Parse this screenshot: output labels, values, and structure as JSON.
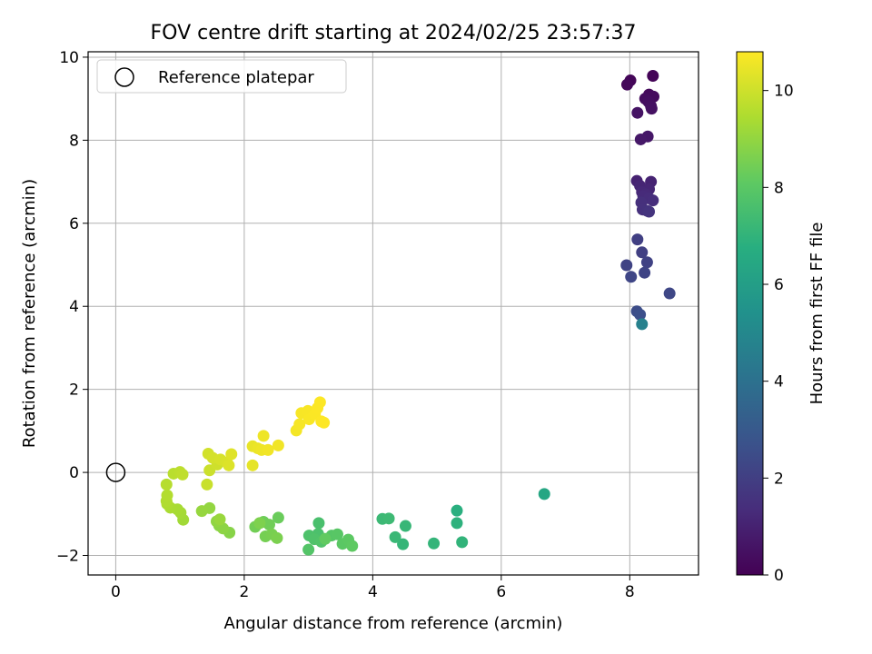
{
  "chart_data": {
    "type": "scatter",
    "title": "FOV centre drift starting at 2024/02/25 23:57:37",
    "xlabel": "Angular distance from reference (arcmin)",
    "ylabel": "Rotation from reference (arcmin)",
    "xlim": [
      -0.43,
      9.07
    ],
    "ylim": [
      -2.47,
      10.13
    ],
    "xticks": [
      0,
      2,
      4,
      6,
      8
    ],
    "yticks": [
      -2,
      0,
      2,
      4,
      6,
      8,
      10
    ],
    "grid": true,
    "legend": {
      "location": "top-left",
      "entries": [
        "Reference platepar"
      ]
    },
    "reference_point": {
      "x": 0,
      "y": 0
    },
    "colorbar": {
      "label": "Hours from first FF file",
      "colormap": "viridis",
      "range": [
        0,
        10.8
      ],
      "ticks": [
        0,
        2,
        4,
        6,
        8,
        10
      ]
    },
    "points": [
      [
        8.36,
        9.55,
        0.1
      ],
      [
        8.01,
        9.44,
        0.15
      ],
      [
        7.96,
        9.34,
        0.2
      ],
      [
        8.3,
        9.1,
        0.25
      ],
      [
        8.37,
        9.05,
        0.3
      ],
      [
        8.24,
        9.0,
        0.35
      ],
      [
        8.29,
        8.93,
        0.4
      ],
      [
        8.33,
        8.82,
        0.45
      ],
      [
        8.34,
        8.76,
        0.5
      ],
      [
        8.12,
        8.66,
        0.55
      ],
      [
        8.28,
        8.09,
        0.65
      ],
      [
        8.17,
        8.02,
        0.7
      ],
      [
        8.11,
        7.02,
        1.0
      ],
      [
        8.33,
        7.0,
        1.05
      ],
      [
        8.16,
        6.9,
        1.1
      ],
      [
        8.3,
        6.82,
        1.15
      ],
      [
        8.19,
        6.75,
        1.2
      ],
      [
        8.25,
        6.7,
        1.25
      ],
      [
        8.21,
        6.65,
        1.3
      ],
      [
        8.3,
        6.6,
        1.35
      ],
      [
        8.36,
        6.55,
        1.4
      ],
      [
        8.18,
        6.5,
        1.45
      ],
      [
        8.2,
        6.33,
        1.5
      ],
      [
        8.27,
        6.3,
        1.55
      ],
      [
        8.3,
        6.28,
        1.6
      ],
      [
        8.12,
        5.61,
        2.0
      ],
      [
        8.19,
        5.3,
        2.05
      ],
      [
        8.27,
        5.06,
        2.1
      ],
      [
        7.95,
        4.99,
        2.15
      ],
      [
        8.23,
        4.81,
        2.2
      ],
      [
        8.02,
        4.71,
        2.25
      ],
      [
        8.62,
        4.31,
        2.3
      ],
      [
        8.11,
        3.88,
        2.5
      ],
      [
        8.16,
        3.8,
        2.6
      ],
      [
        8.19,
        3.57,
        4.7
      ],
      [
        6.67,
        -0.52,
        6.4
      ],
      [
        5.31,
        -0.92,
        6.8
      ],
      [
        5.31,
        -1.22,
        6.9
      ],
      [
        5.39,
        -1.68,
        7.0
      ],
      [
        4.95,
        -1.71,
        7.05
      ],
      [
        4.47,
        -1.73,
        7.1
      ],
      [
        4.51,
        -1.29,
        7.15
      ],
      [
        4.35,
        -1.56,
        7.2
      ],
      [
        4.15,
        -1.12,
        7.25
      ],
      [
        4.25,
        -1.11,
        7.3
      ],
      [
        3.16,
        -1.22,
        7.6
      ],
      [
        3.15,
        -1.48,
        7.65
      ],
      [
        3.01,
        -1.52,
        7.7
      ],
      [
        3.09,
        -1.61,
        7.75
      ],
      [
        3.2,
        -1.67,
        7.8
      ],
      [
        3.0,
        -1.86,
        7.85
      ],
      [
        3.36,
        -1.52,
        7.9
      ],
      [
        3.45,
        -1.49,
        7.95
      ],
      [
        3.53,
        -1.72,
        8.0
      ],
      [
        3.62,
        -1.62,
        8.05
      ],
      [
        3.68,
        -1.77,
        8.1
      ],
      [
        3.26,
        -1.6,
        8.15
      ],
      [
        2.53,
        -1.09,
        8.3
      ],
      [
        2.3,
        -1.19,
        8.35
      ],
      [
        2.39,
        -1.26,
        8.4
      ],
      [
        2.17,
        -1.31,
        8.45
      ],
      [
        2.33,
        -1.54,
        8.5
      ],
      [
        2.43,
        -1.49,
        8.55
      ],
      [
        2.51,
        -1.58,
        8.6
      ],
      [
        2.24,
        -1.22,
        8.65
      ],
      [
        1.77,
        -1.45,
        8.8
      ],
      [
        1.61,
        -1.28,
        8.85
      ],
      [
        1.67,
        -1.35,
        8.9
      ],
      [
        1.57,
        -1.18,
        8.95
      ],
      [
        1.46,
        -0.86,
        9.0
      ],
      [
        1.34,
        -0.93,
        9.05
      ],
      [
        1.62,
        -1.13,
        9.1
      ],
      [
        1.05,
        -1.14,
        9.25
      ],
      [
        1.01,
        -0.97,
        9.3
      ],
      [
        0.96,
        -0.89,
        9.35
      ],
      [
        0.85,
        -0.85,
        9.4
      ],
      [
        0.8,
        -0.76,
        9.45
      ],
      [
        0.79,
        -0.69,
        9.5
      ],
      [
        0.8,
        -0.55,
        9.55
      ],
      [
        0.79,
        -0.29,
        9.6
      ],
      [
        0.9,
        -0.03,
        9.65
      ],
      [
        1.0,
        0.01,
        9.7
      ],
      [
        1.04,
        -0.05,
        9.75
      ],
      [
        1.42,
        -0.29,
        9.9
      ],
      [
        1.46,
        0.05,
        9.95
      ],
      [
        1.58,
        0.19,
        10.0
      ],
      [
        1.44,
        0.45,
        10.05
      ],
      [
        1.51,
        0.35,
        10.1
      ],
      [
        1.63,
        0.31,
        10.15
      ],
      [
        1.73,
        0.24,
        10.2
      ],
      [
        1.76,
        0.17,
        10.25
      ],
      [
        1.8,
        0.44,
        10.3
      ],
      [
        2.13,
        0.17,
        10.4
      ],
      [
        2.13,
        0.63,
        10.45
      ],
      [
        2.21,
        0.58,
        10.5
      ],
      [
        2.27,
        0.54,
        10.55
      ],
      [
        2.3,
        0.88,
        10.55
      ],
      [
        2.37,
        0.54,
        10.6
      ],
      [
        2.53,
        0.65,
        10.6
      ],
      [
        2.81,
        1.01,
        10.65
      ],
      [
        2.86,
        1.16,
        10.68
      ],
      [
        2.89,
        1.43,
        10.7
      ],
      [
        2.99,
        1.48,
        10.72
      ],
      [
        3.01,
        1.28,
        10.74
      ],
      [
        3.1,
        1.4,
        10.76
      ],
      [
        3.14,
        1.55,
        10.78
      ],
      [
        3.18,
        1.69,
        10.78
      ],
      [
        3.2,
        1.23,
        10.8
      ],
      [
        3.24,
        1.2,
        10.8
      ]
    ]
  }
}
